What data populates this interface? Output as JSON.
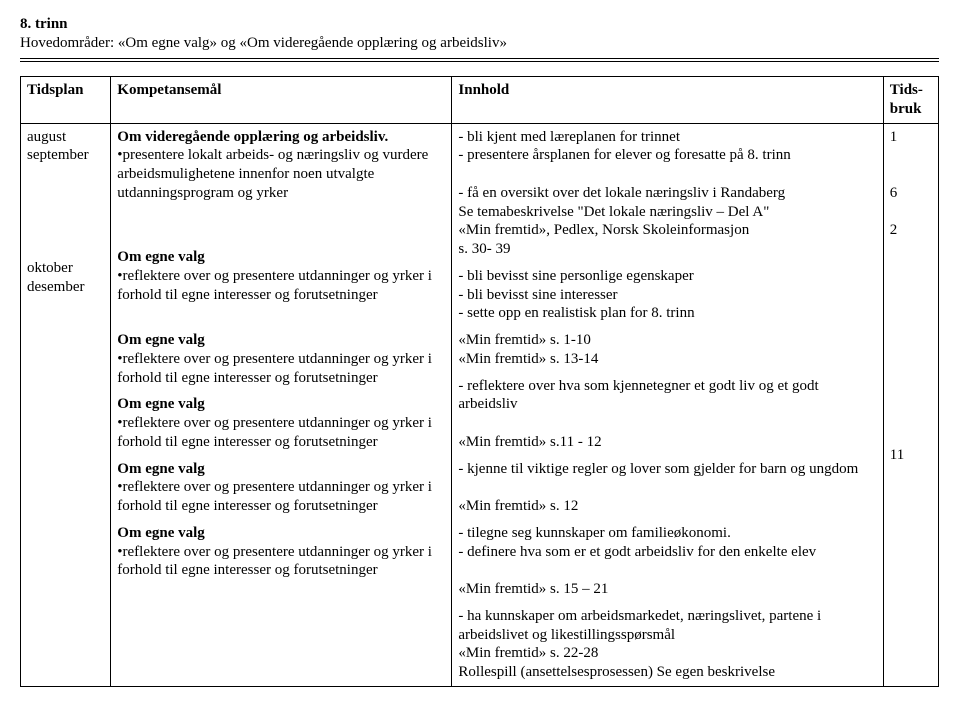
{
  "header": {
    "title": "8. trinn",
    "subtitle": "Hovedområder: «Om egne valg» og «Om videregående opplæring og arbeidsliv»"
  },
  "table": {
    "headers": {
      "tidsplan": "Tidsplan",
      "kompetansemal": "Kompetansemål",
      "innhold": "Innhold",
      "tidsbruk": "Tids-bruk"
    },
    "row1": {
      "tidsplan_a": "august",
      "tidsplan_b": "september",
      "komp_title": "Om videregående opplæring og arbeidsliv.",
      "komp_bullet": "•presentere lokalt arbeids- og næringsliv og vurdere arbeidsmulighetene innenfor noen utvalgte utdanningsprogram og yrker",
      "inn_a": "- bli kjent med læreplanen for trinnet",
      "inn_b": "- presentere årsplanen for elever og foresatte på 8. trinn",
      "inn_c": "- få en oversikt over det lokale næringsliv i Randaberg",
      "inn_d": "Se temabeskrivelse \"Det lokale næringsliv – Del A\"",
      "inn_e": "«Min fremtid», Pedlex, Norsk Skoleinformasjon",
      "inn_f": "s. 30- 39",
      "tidsbruk_a": "1",
      "tidsbruk_b": "6",
      "tidsbruk_c": "2"
    },
    "row2": {
      "tidsplan_a": "oktober",
      "tidsplan_b": "desember",
      "egne_title": "Om egne valg",
      "egne_bullet": "•reflektere over og presentere utdanninger og yrker i forhold til egne interesser og forutsetninger",
      "inn1_a": "- bli bevisst sine personlige egenskaper",
      "inn1_b": "- bli bevisst sine interesser",
      "inn1_c": "- sette opp en realistisk plan for 8. trinn",
      "inn2_a": "«Min fremtid» s. 1-10",
      "inn2_b": "«Min fremtid» s. 13-14",
      "inn3_a": "- reflektere over hva som kjennetegner et godt liv og et godt arbeidsliv",
      "inn3_b": "«Min fremtid» s.11 - 12",
      "inn4_a": "- kjenne til viktige regler og lover som gjelder for barn og ungdom",
      "inn4_b": "«Min fremtid» s. 12",
      "inn5_a": "- tilegne seg kunnskaper om familieøkonomi.",
      "inn5_b": "- definere hva som er et godt arbeidsliv for den enkelte elev",
      "inn5_c": "«Min fremtid» s. 15 – 21",
      "inn6_a": "- ha kunnskaper om arbeidsmarkedet, næringslivet,  partene i arbeidslivet og likestillingsspørsmål",
      "inn6_b": "«Min fremtid» s. 22-28",
      "inn6_c": "Rollespill (ansettelsesprosessen) Se egen beskrivelse",
      "tidsbruk": "11"
    }
  }
}
